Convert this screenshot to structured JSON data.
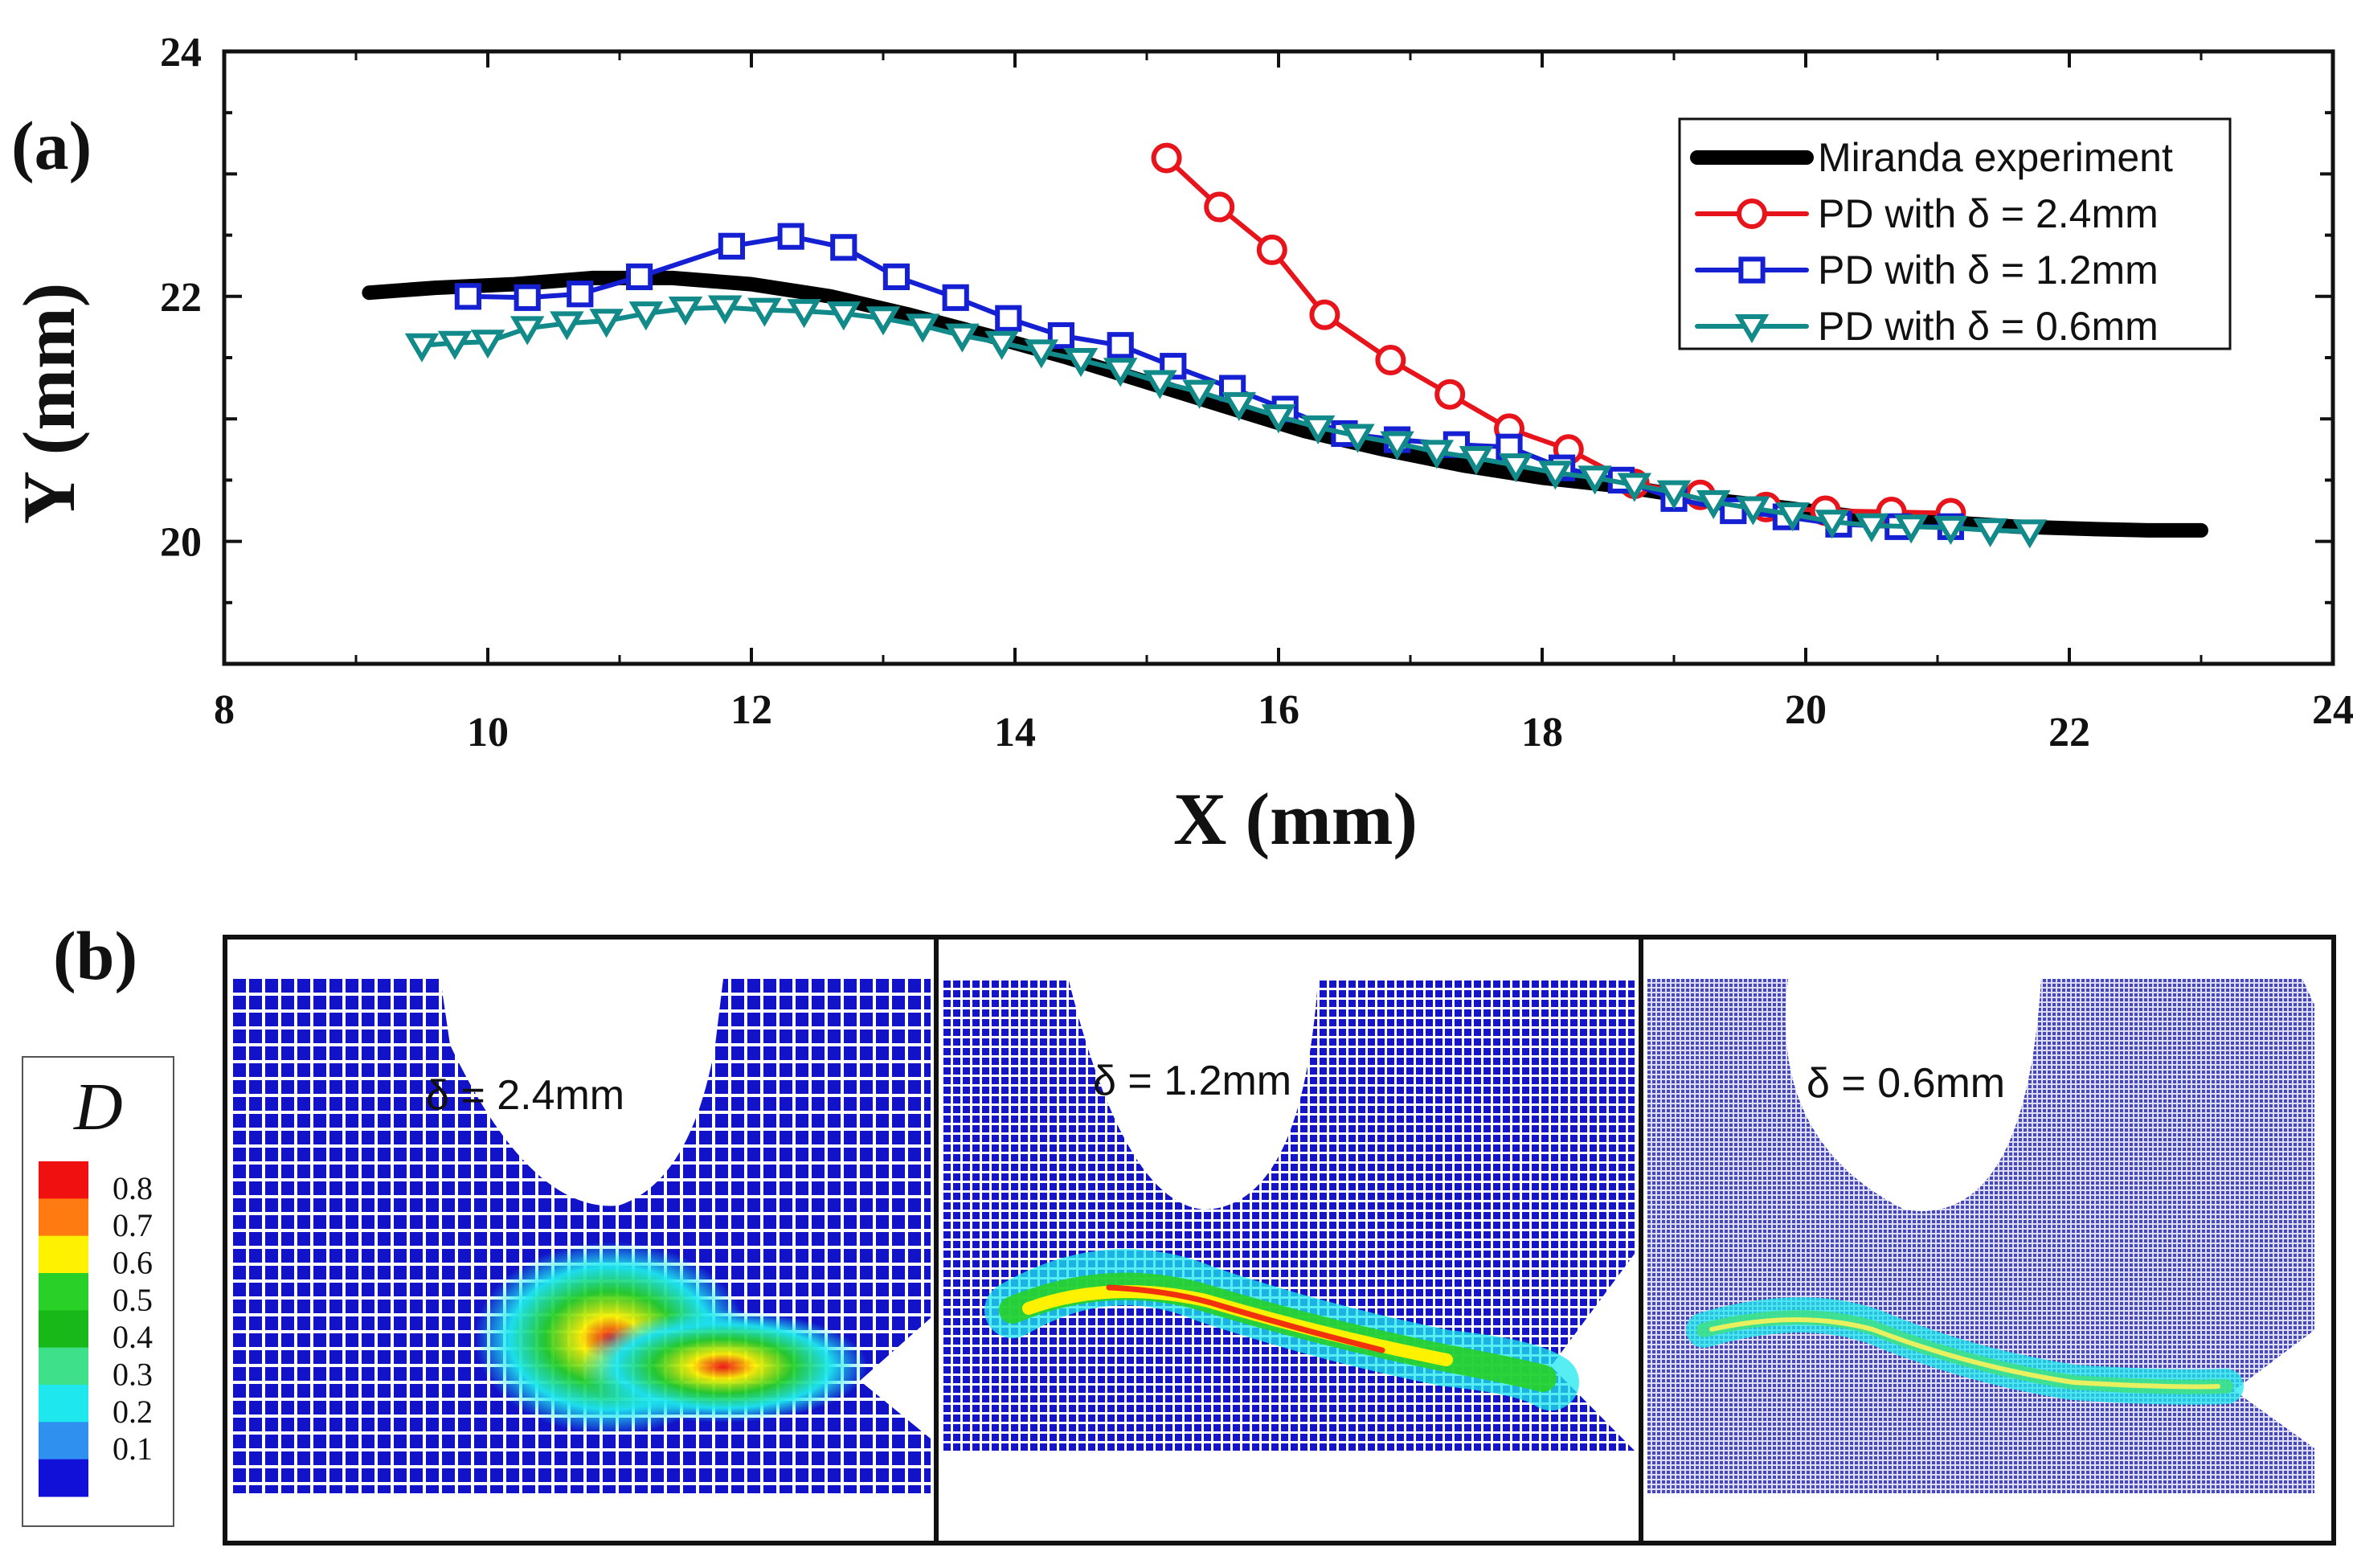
{
  "panel_a_label": "(a)",
  "panel_b_label": "(b)",
  "colors": {
    "experiment": "#000000",
    "pd24": "#e8141c",
    "pd12": "#1420d2",
    "pd06": "#128a8a",
    "mesh": "#1212c8"
  },
  "chart_data": {
    "type": "line",
    "title": "",
    "xlabel": "X (mm)",
    "ylabel": "Y (mm)",
    "xlim": [
      8,
      24
    ],
    "ylim": [
      19,
      24
    ],
    "xticks": [
      8,
      10,
      12,
      14,
      16,
      18,
      20,
      22,
      24
    ],
    "yticks": [
      20,
      22,
      24
    ],
    "legend_position": "top-right",
    "series": [
      {
        "name": "Miranda experiment",
        "marker": "none",
        "x": [
          9.1,
          9.6,
          10.2,
          10.8,
          11.4,
          12.0,
          12.6,
          13.2,
          13.8,
          14.4,
          15.0,
          15.6,
          16.2,
          16.8,
          17.4,
          18.0,
          18.6,
          19.2,
          19.8,
          20.4,
          21.0,
          21.6,
          22.2,
          22.6,
          23.0
        ],
        "y": [
          22.03,
          22.07,
          22.1,
          22.15,
          22.15,
          22.1,
          22.0,
          21.85,
          21.68,
          21.5,
          21.3,
          21.1,
          20.9,
          20.75,
          20.62,
          20.52,
          20.45,
          20.35,
          20.28,
          20.2,
          20.16,
          20.12,
          20.1,
          20.09,
          20.09
        ]
      },
      {
        "name": "PD with δ = 2.4mm",
        "marker": "circle",
        "x": [
          15.15,
          15.55,
          15.95,
          16.35,
          16.85,
          17.3,
          17.75,
          18.2,
          18.7,
          19.2,
          19.7,
          20.15,
          20.65,
          21.1
        ],
        "y": [
          23.13,
          22.73,
          22.38,
          21.85,
          21.48,
          21.2,
          20.92,
          20.75,
          20.47,
          20.38,
          20.28,
          20.25,
          20.24,
          20.23
        ]
      },
      {
        "name": "PD with δ = 1.2mm",
        "marker": "square",
        "x": [
          9.85,
          10.3,
          10.7,
          11.15,
          11.85,
          12.3,
          12.7,
          13.1,
          13.55,
          13.95,
          14.35,
          14.8,
          15.2,
          15.65,
          16.05,
          16.5,
          16.9,
          17.35,
          17.75,
          18.15,
          18.6,
          19.0,
          19.45,
          19.85,
          20.25,
          20.7,
          21.1
        ],
        "y": [
          22.0,
          21.99,
          22.02,
          22.16,
          22.41,
          22.49,
          22.4,
          22.16,
          21.99,
          21.82,
          21.68,
          21.6,
          21.43,
          21.25,
          21.08,
          20.88,
          20.83,
          20.79,
          20.77,
          20.6,
          20.5,
          20.35,
          20.25,
          20.2,
          20.14,
          20.12,
          20.12
        ]
      },
      {
        "name": "PD with δ = 0.6mm",
        "marker": "triangle-down",
        "x": [
          9.5,
          9.75,
          10.0,
          10.3,
          10.6,
          10.9,
          11.2,
          11.5,
          11.8,
          12.1,
          12.4,
          12.7,
          13.0,
          13.3,
          13.6,
          13.9,
          14.2,
          14.5,
          14.8,
          15.1,
          15.4,
          15.7,
          16.0,
          16.3,
          16.6,
          16.9,
          17.2,
          17.5,
          17.8,
          18.1,
          18.4,
          18.7,
          19.0,
          19.3,
          19.6,
          19.9,
          20.2,
          20.5,
          20.8,
          21.1,
          21.4,
          21.7
        ],
        "y": [
          21.6,
          21.62,
          21.63,
          21.74,
          21.78,
          21.8,
          21.86,
          21.9,
          21.91,
          21.89,
          21.88,
          21.86,
          21.82,
          21.76,
          21.68,
          21.62,
          21.55,
          21.48,
          21.4,
          21.3,
          21.22,
          21.12,
          21.02,
          20.93,
          20.86,
          20.8,
          20.73,
          20.68,
          20.62,
          20.56,
          20.52,
          20.46,
          20.4,
          20.32,
          20.27,
          20.22,
          20.16,
          20.13,
          20.12,
          20.11,
          20.09,
          20.08
        ]
      }
    ]
  },
  "damage_panels": [
    {
      "label": "δ = 2.4mm"
    },
    {
      "label": "δ = 1.2mm"
    },
    {
      "label": "δ = 0.6mm"
    }
  ],
  "colorbar": {
    "title": "D",
    "ticks": [
      "0.8",
      "0.7",
      "0.6",
      "0.5",
      "0.4",
      "0.3",
      "0.2",
      "0.1"
    ],
    "colors": [
      "#f01010",
      "#ff7a10",
      "#fff200",
      "#28d028",
      "#18b818",
      "#3ee08a",
      "#1ee8ee",
      "#3090f0",
      "#1010d8"
    ]
  }
}
